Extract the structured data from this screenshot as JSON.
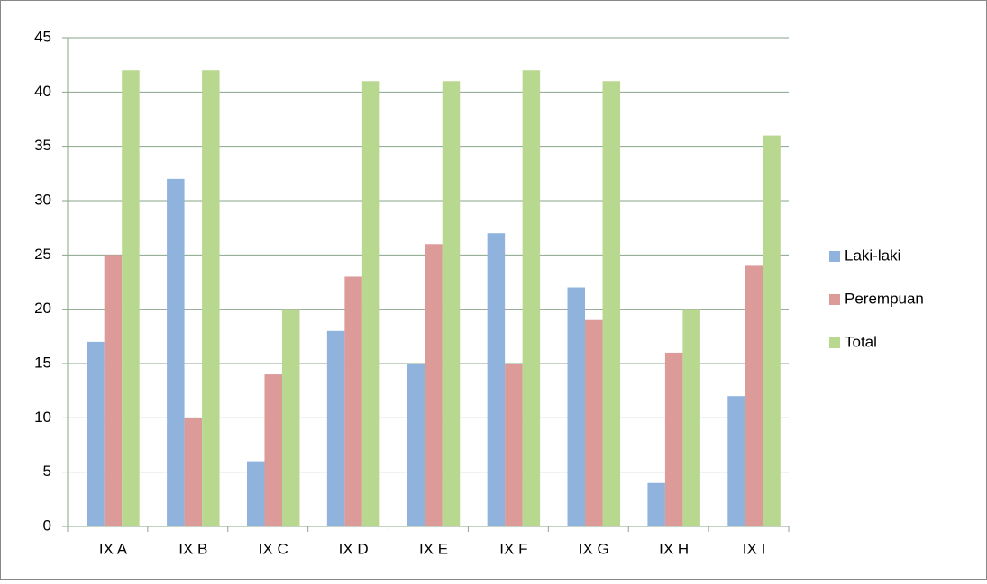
{
  "chart_data": {
    "type": "bar",
    "categories": [
      "IX A",
      "IX B",
      "IX C",
      "IX D",
      "IX E",
      "IX F",
      "IX G",
      "IX H",
      "IX I"
    ],
    "series": [
      {
        "name": "Laki-laki",
        "color": "#8fb3dd",
        "values": [
          17,
          32,
          6,
          18,
          15,
          27,
          22,
          4,
          12
        ]
      },
      {
        "name": "Perempuan",
        "color": "#dc9a99",
        "values": [
          25,
          10,
          14,
          23,
          26,
          15,
          19,
          16,
          24
        ]
      },
      {
        "name": "Total",
        "color": "#b9d88f",
        "values": [
          42,
          42,
          20,
          41,
          41,
          42,
          41,
          20,
          36
        ]
      }
    ],
    "ylim": [
      0,
      45
    ],
    "yticks": [
      0,
      5,
      10,
      15,
      20,
      25,
      30,
      35,
      40,
      45
    ],
    "grid": true,
    "legend": "right"
  }
}
